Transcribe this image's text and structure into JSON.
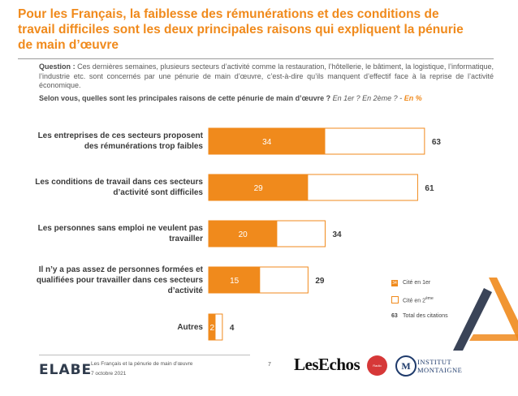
{
  "title": "Pour les Français, la faiblesse des rémunérations et des conditions de travail difficiles sont les deux principales raisons qui expliquent la pénurie de main d’œuvre",
  "question": {
    "label": "Question :",
    "text": "Ces dernières semaines, plusieurs secteurs d’activité comme la restauration, l’hôtellerie, le bâtiment, la logistique, l’informatique, l’industrie etc. sont concernés par une pénurie de main d’œuvre, c’est-à-dire qu’ils manquent d’effectif face à la reprise de l’activité économique.",
    "subquestion": "Selon vous, quelles sont les principales raisons de cette pénurie de main d’œuvre ?",
    "sub_italic": "En 1er ? En 2ème ? -",
    "sub_pct": "En %"
  },
  "chart_data": {
    "type": "bar",
    "orientation": "horizontal",
    "categories": [
      [
        "Les entreprises de ces secteurs proposent",
        "des rémunérations trop faibles"
      ],
      [
        "Les conditions de travail dans ces secteurs",
        "d’activité sont difficiles"
      ],
      [
        "Les personnes sans emploi ne veulent pas",
        "travailler"
      ],
      [
        "Il n’y a pas assez de personnes formées et",
        "qualifiées pour travailler dans ces secteurs",
        "d’activité"
      ],
      [
        "Autres"
      ]
    ],
    "series": [
      {
        "name": "Cité en 1er",
        "values": [
          34,
          29,
          20,
          15,
          2
        ]
      },
      {
        "name": "Total des citations",
        "values": [
          63,
          61,
          34,
          29,
          4
        ]
      }
    ],
    "xlim": [
      0,
      63
    ],
    "grid": false,
    "legend_position": "right"
  },
  "legend": {
    "first_swatch": "34",
    "first": "Cité en 1er",
    "second_prefix": "Cité en 2",
    "second_sup": "ème",
    "total_num": "63",
    "total": "Total des citations"
  },
  "footer": {
    "brand": "ELABE",
    "line1": "Les Français et la pénurie de main d’œuvre",
    "line2": "7 octobre 2021",
    "page": "7",
    "partner1": "LesEchos",
    "partner2": "Radio Classique",
    "partner3_mark": "M",
    "partner3_line1": "INSTITUT",
    "partner3_line2": "MONTAIGNE"
  },
  "colors": {
    "accent": "#f08a1c",
    "title": "#f08a1c",
    "text": "#3a3a3a"
  }
}
